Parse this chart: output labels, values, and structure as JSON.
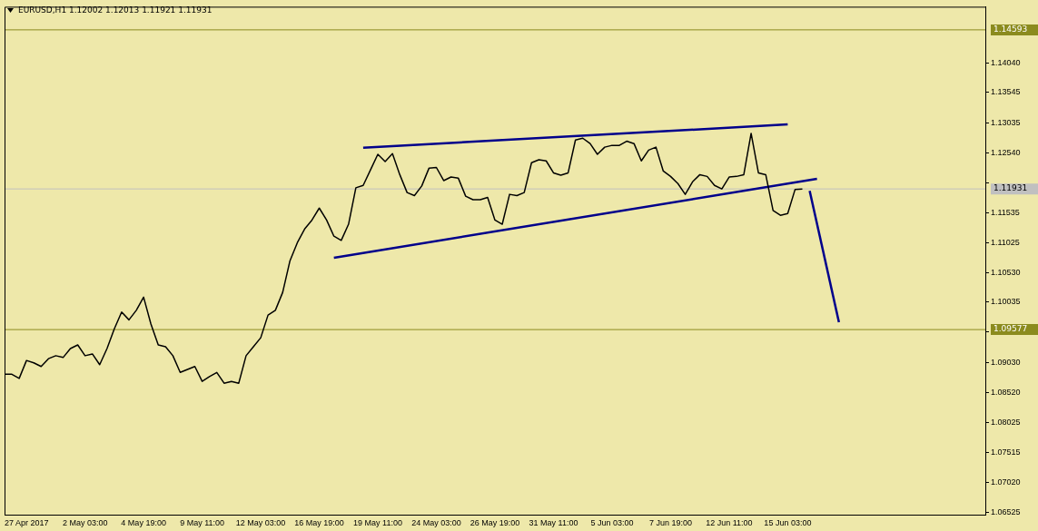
{
  "chart_data": {
    "type": "line",
    "title": "EURUSD,H1  1.12002 1.12013 1.11921 1.11931",
    "categories": [
      null,
      null,
      null,
      "27 Apr 2017",
      null,
      null,
      null,
      null,
      null,
      null,
      null,
      "2 May 03:00",
      null,
      null,
      null,
      null,
      null,
      null,
      null,
      "4 May 19:00",
      null,
      null,
      null,
      null,
      null,
      null,
      null,
      "9 May 11:00",
      null,
      null,
      null,
      null,
      null,
      null,
      null,
      "12 May 03:00",
      null,
      null,
      null,
      null,
      null,
      null,
      null,
      "16 May 19:00",
      null,
      null,
      null,
      null,
      null,
      null,
      null,
      "19 May 11:00",
      null,
      null,
      null,
      null,
      null,
      null,
      null,
      "24 May 03:00",
      null,
      null,
      null,
      null,
      null,
      null,
      null,
      "26 May 19:00",
      null,
      null,
      null,
      null,
      null,
      null,
      null,
      "31 May 11:00",
      null,
      null,
      null,
      null,
      null,
      null,
      null,
      "5 Jun 03:00",
      null,
      null,
      null,
      null,
      null,
      null,
      null,
      "7 Jun 19:00",
      null,
      null,
      null,
      null,
      null,
      null,
      null,
      "12 Jun 11:00",
      null,
      null,
      null,
      null,
      null,
      null,
      null,
      "15 Jun 03:00",
      null,
      null,
      null,
      null,
      null,
      null,
      null,
      null,
      null,
      null,
      null,
      null,
      null,
      null,
      null,
      null,
      null,
      null,
      null,
      null,
      null,
      null,
      null,
      null,
      null,
      null,
      null
    ],
    "series": [
      {
        "color": "#000000",
        "values": [
          1.0883,
          1.0883,
          1.0876,
          1.0906,
          1.0902,
          1.0896,
          1.0909,
          1.0914,
          1.0911,
          1.0926,
          1.0932,
          1.0914,
          1.0917,
          1.0899,
          1.0926,
          1.0959,
          1.0987,
          1.0974,
          1.099,
          1.1012,
          1.0967,
          1.0932,
          1.0929,
          1.0914,
          1.0886,
          1.0891,
          1.0896,
          1.0871,
          1.0879,
          1.0886,
          1.0868,
          1.0871,
          1.0868,
          1.0914,
          1.0929,
          1.0944,
          1.0982,
          1.099,
          1.102,
          1.1073,
          1.1103,
          1.1126,
          1.1141,
          1.1161,
          1.1141,
          1.1114,
          1.1107,
          1.1134,
          1.1195,
          1.1199,
          1.1225,
          1.1251,
          1.1239,
          1.1252,
          1.1217,
          1.1187,
          1.1182,
          1.1198,
          1.1228,
          1.1229,
          1.1207,
          1.1213,
          1.1211,
          1.1181,
          1.1175,
          1.1175,
          1.1179,
          1.1141,
          1.1134,
          1.1184,
          1.1182,
          1.1187,
          1.1237,
          1.1242,
          1.124,
          1.122,
          1.1216,
          1.122,
          1.1275,
          1.1278,
          1.1269,
          1.1251,
          1.1263,
          1.1266,
          1.1266,
          1.1273,
          1.1269,
          1.124,
          1.1258,
          1.1263,
          1.1223,
          1.1214,
          1.1202,
          1.1184,
          1.1205,
          1.1217,
          1.1214,
          1.1199,
          1.1193,
          1.1213,
          1.1214,
          1.1217,
          1.1286,
          1.122,
          1.1217,
          1.1157,
          1.1149,
          1.1152,
          1.1192,
          1.1193,
          null,
          null,
          null,
          null,
          null,
          null,
          null,
          null,
          null,
          null,
          null,
          null,
          null,
          null,
          null,
          null,
          null,
          null,
          null,
          null,
          null,
          null,
          null,
          null,
          null
        ]
      },
      {
        "type": "line",
        "color": "#00008b",
        "values": [
          null,
          null,
          null,
          null,
          null,
          null,
          null,
          null,
          null,
          null,
          null,
          null,
          null,
          null,
          null,
          null,
          null,
          null,
          null,
          null,
          null,
          null,
          null,
          null,
          null,
          null,
          null,
          null,
          null,
          null,
          null,
          null,
          null,
          null,
          null,
          null,
          null,
          null,
          null,
          null,
          null,
          null,
          null,
          null,
          null,
          null,
          null,
          null,
          null,
          1.1262,
          null,
          null,
          null,
          null,
          null,
          null,
          null,
          null,
          null,
          null,
          null,
          null,
          null,
          null,
          null,
          null,
          null,
          null,
          null,
          null,
          null,
          null,
          null,
          null,
          null,
          null,
          null,
          null,
          null,
          null,
          null,
          null,
          null,
          null,
          null,
          null,
          null,
          null,
          null,
          null,
          null,
          null,
          null,
          null,
          null,
          null,
          null,
          null,
          null,
          null,
          null,
          null,
          null,
          null,
          null,
          null,
          null,
          1.1301,
          null,
          null,
          null,
          null,
          null,
          null,
          null,
          null,
          null,
          null,
          null,
          null,
          null,
          null,
          null,
          null,
          null,
          null,
          null,
          null,
          null,
          null,
          null,
          null,
          null,
          null,
          null
        ]
      },
      {
        "type": "line",
        "color": "#00008b",
        "values": [
          null,
          null,
          null,
          null,
          null,
          null,
          null,
          null,
          null,
          null,
          null,
          null,
          null,
          null,
          null,
          null,
          null,
          null,
          null,
          null,
          null,
          null,
          null,
          null,
          null,
          null,
          null,
          null,
          null,
          null,
          null,
          null,
          null,
          null,
          null,
          null,
          null,
          null,
          null,
          null,
          null,
          null,
          null,
          null,
          null,
          1.1078,
          null,
          null,
          null,
          null,
          null,
          null,
          null,
          null,
          null,
          null,
          null,
          null,
          null,
          null,
          null,
          null,
          null,
          null,
          null,
          null,
          null,
          null,
          null,
          null,
          null,
          null,
          null,
          null,
          null,
          null,
          null,
          null,
          null,
          null,
          null,
          null,
          null,
          null,
          null,
          null,
          null,
          null,
          null,
          null,
          null,
          null,
          null,
          null,
          null,
          null,
          null,
          null,
          null,
          null,
          null,
          null,
          null,
          null,
          null,
          null,
          null,
          null,
          null,
          null,
          null,
          1.121,
          null,
          null,
          null,
          null,
          null,
          null,
          null,
          null,
          null,
          null,
          null,
          null,
          null,
          null,
          null,
          null,
          null,
          null,
          null,
          null,
          null,
          null,
          null
        ]
      },
      {
        "type": "line",
        "color": "#00008b",
        "values": [
          null,
          null,
          null,
          null,
          null,
          null,
          null,
          null,
          null,
          null,
          null,
          null,
          null,
          null,
          null,
          null,
          null,
          null,
          null,
          null,
          null,
          null,
          null,
          null,
          null,
          null,
          null,
          null,
          null,
          null,
          null,
          null,
          null,
          null,
          null,
          null,
          null,
          null,
          null,
          null,
          null,
          null,
          null,
          null,
          null,
          null,
          null,
          null,
          null,
          null,
          null,
          null,
          null,
          null,
          null,
          null,
          null,
          null,
          null,
          null,
          null,
          null,
          null,
          null,
          null,
          null,
          null,
          null,
          null,
          null,
          null,
          null,
          null,
          null,
          null,
          null,
          null,
          null,
          null,
          null,
          null,
          null,
          null,
          null,
          null,
          null,
          null,
          null,
          null,
          null,
          null,
          null,
          null,
          null,
          null,
          null,
          null,
          null,
          null,
          null,
          null,
          null,
          null,
          null,
          null,
          null,
          null,
          null,
          null,
          null,
          1.119,
          null,
          null,
          null,
          1.097,
          null,
          null,
          null,
          null,
          null,
          null,
          null,
          null,
          null,
          null,
          null,
          null,
          null,
          null,
          null,
          null,
          null,
          null,
          null,
          null
        ]
      }
    ],
    "ylim": [
      1.0648,
      1.1498
    ],
    "yticks": [
      {
        "value": 1.1404,
        "label": "1.14040"
      },
      1.13545,
      1.13035,
      {
        "value": 1.1254,
        "label": "1.12540"
      },
      {
        "value": 1.1203,
        "label": null
      },
      1.11535,
      1.11025,
      {
        "value": 1.1053,
        "label": "1.10530"
      },
      1.10035,
      {
        "value": 1.09535,
        "label": null
      },
      {
        "value": 1.0903,
        "label": "1.09030"
      },
      {
        "value": 1.0852,
        "label": "1.08520"
      },
      1.08025,
      1.07515,
      {
        "value": 1.0702,
        "label": "1.07020"
      },
      1.06525
    ],
    "ref_lines": [
      {
        "axis": "y",
        "value": 1.14593,
        "label": "1.14593",
        "color": "#8b8b1e"
      },
      {
        "axis": "y",
        "value": 1.11931,
        "label": "1.11931",
        "color": "#c0c0c0"
      },
      {
        "axis": "y",
        "value": 1.09577,
        "label": "1.09577",
        "color": "#8b8b1e"
      }
    ],
    "grid": false,
    "legend": false,
    "marker": "none",
    "line_style": "solid"
  }
}
